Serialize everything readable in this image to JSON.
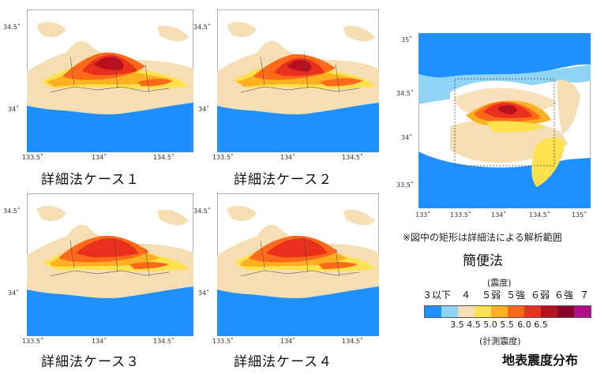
{
  "detailed_maps": [
    {
      "caption": "詳細法ケース１",
      "x_ticks": [
        "133.5˚",
        "134˚",
        "134.5˚"
      ],
      "y_ticks": [
        "34.5˚",
        "34˚"
      ]
    },
    {
      "caption": "詳細法ケース２",
      "x_ticks": [
        "133.5˚",
        "134˚",
        "134.5˚"
      ],
      "y_ticks": [
        "34.5˚",
        "34˚"
      ]
    },
    {
      "caption": "詳細法ケース３",
      "x_ticks": [
        "133.5˚",
        "134˚",
        "134.5˚"
      ],
      "y_ticks": [
        "34.5˚",
        "34˚"
      ]
    },
    {
      "caption": "詳細法ケース４",
      "x_ticks": [
        "133.5˚",
        "134˚",
        "134.5˚"
      ],
      "y_ticks": [
        "34.5˚",
        "34˚"
      ]
    }
  ],
  "simple_map": {
    "x_ticks": [
      "133˚",
      "133.5˚",
      "134˚",
      "134.5˚",
      "135˚"
    ],
    "y_ticks": [
      "35˚",
      "34.5˚",
      "34˚",
      "33.5˚"
    ],
    "note": "※図中の矩形は詳細法による解析範囲",
    "title": "簡便法"
  },
  "legend": {
    "top_label": "(震度)",
    "intensity_classes": [
      "３以下",
      "４",
      "５弱",
      "５強",
      "６弱",
      "６強",
      "７"
    ],
    "colors": [
      "#1e90ff",
      "#8fd3f5",
      "#f5deb3",
      "#ffe14d",
      "#ffb020",
      "#ff6a1a",
      "#e8301c",
      "#b8101e",
      "#8a0028",
      "#b0108a"
    ],
    "values": [
      "3.5",
      "4.5",
      "5.0",
      "5.5",
      "6.0",
      "6.5"
    ],
    "bottom_label": "(計測震度)"
  },
  "map_colors": {
    "sea": "#1e90ff",
    "land_low": "#f5deb3",
    "yellow": "#ffe14d",
    "orange": "#ffb020",
    "red_orange": "#ff6a1a",
    "red": "#e8301c",
    "dark_red": "#b8101e"
  },
  "main_title": "地表震度分布"
}
